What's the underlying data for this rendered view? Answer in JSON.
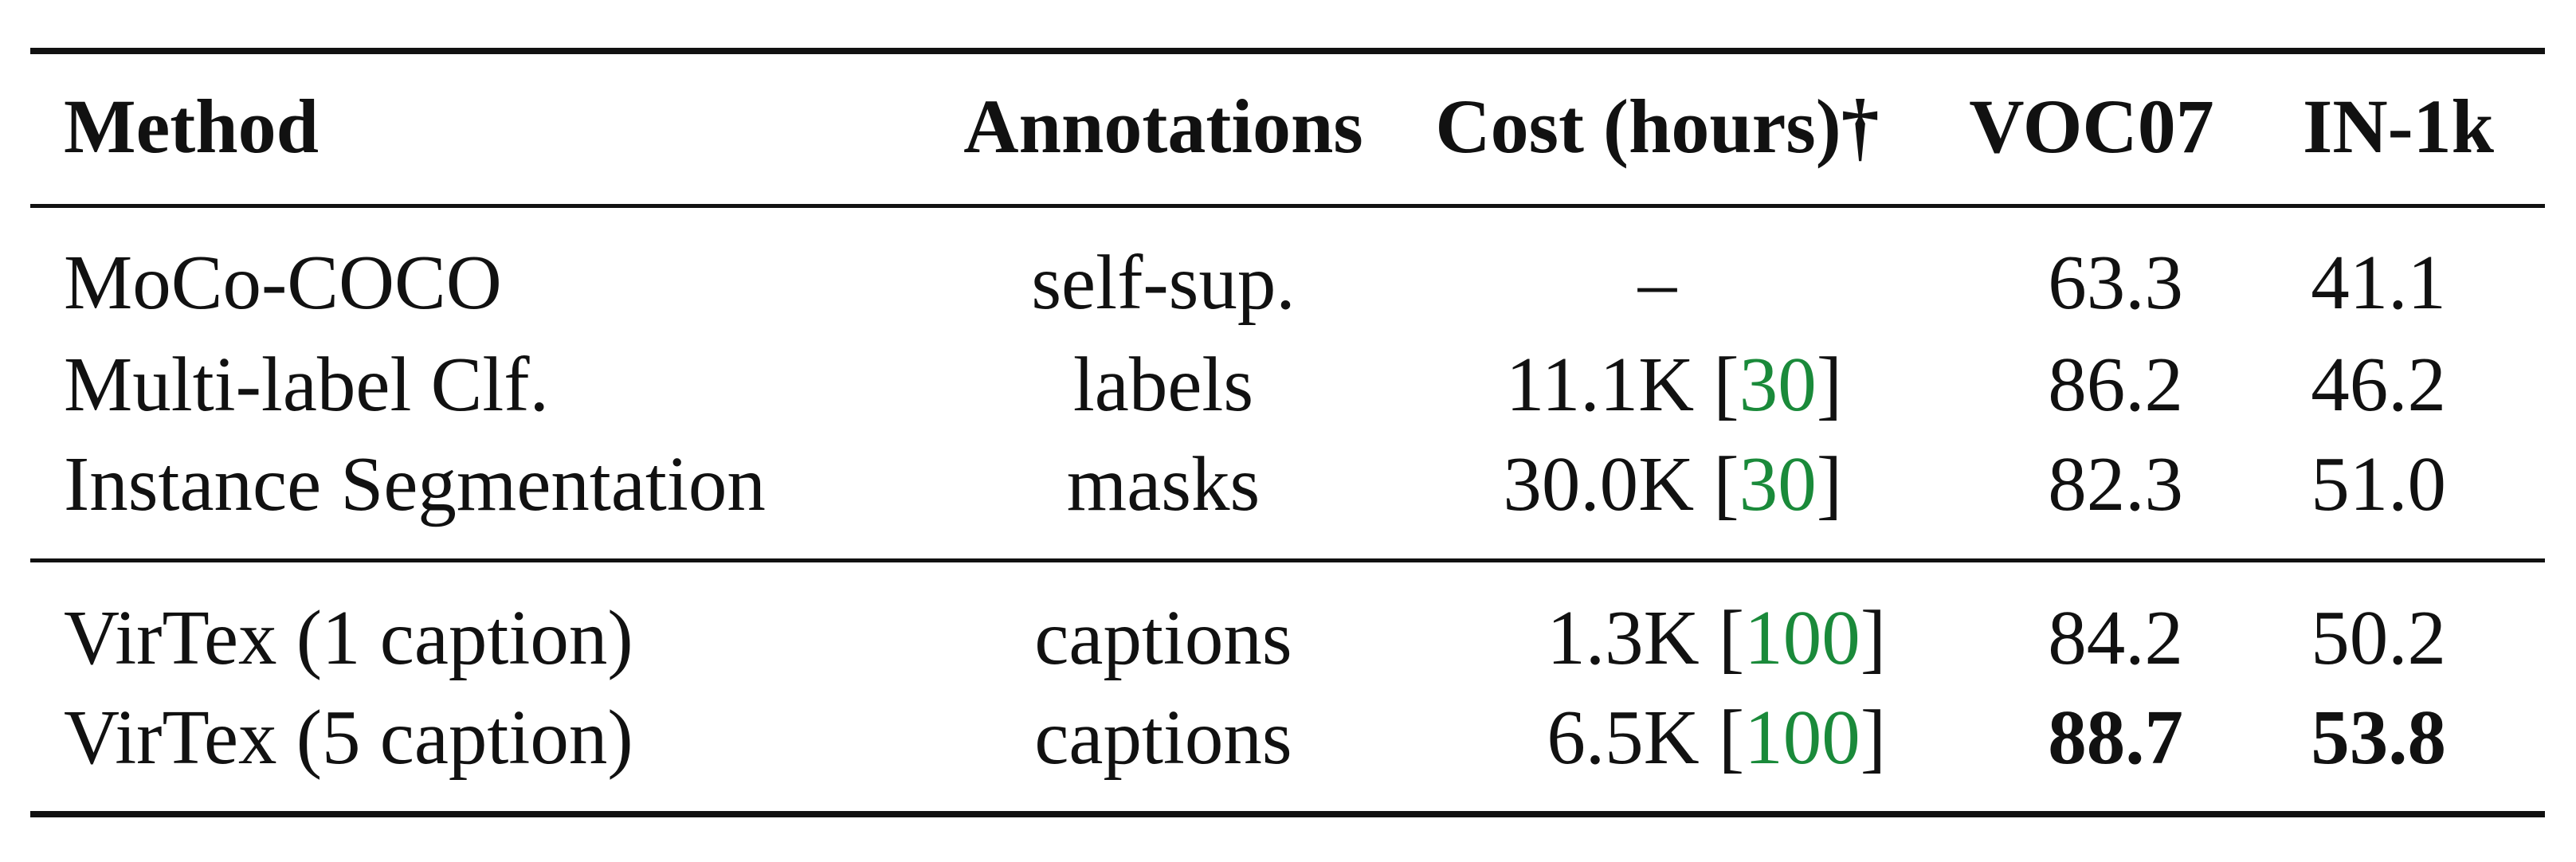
{
  "table": {
    "headers": {
      "method": "Method",
      "annotations": "Annotations",
      "cost": "Cost (hours)†",
      "voc07": "VOC07",
      "in1k": "IN-1k"
    },
    "rows": [
      {
        "method": "MoCo-COCO",
        "annotations": "self-sup.",
        "cost": "–",
        "ref": "",
        "voc07": "63.3",
        "in1k": "41.1"
      },
      {
        "method": "Multi-label Clf.",
        "annotations": "labels",
        "cost": "11.1K",
        "ref": "30",
        "voc07": "86.2",
        "in1k": "46.2"
      },
      {
        "method": "Instance Segmentation",
        "annotations": "masks",
        "cost": "30.0K",
        "ref": "30",
        "voc07": "82.3",
        "in1k": "51.0"
      },
      {
        "method": "VirTex (1 caption)",
        "annotations": "captions",
        "cost": "1.3K",
        "ref": "100",
        "voc07": "84.2",
        "in1k": "50.2"
      },
      {
        "method": "VirTex (5 caption)",
        "annotations": "captions",
        "cost": "6.5K",
        "ref": "100",
        "voc07": "88.7",
        "in1k": "53.8"
      }
    ]
  },
  "colors": {
    "text": "#111111",
    "citation": "#1a8a3a"
  }
}
